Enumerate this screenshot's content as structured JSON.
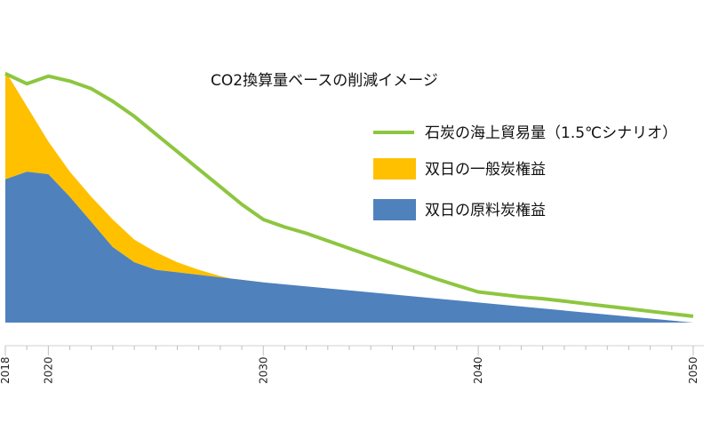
{
  "chart_data": {
    "type": "area",
    "title": "CO2換算量ベースの削減イメージ",
    "xlim": [
      2018,
      2050
    ],
    "ylim": [
      0,
      1
    ],
    "x_ticks": [
      2018,
      2020,
      2030,
      2040,
      2050
    ],
    "x_tick_labels": [
      "2018",
      "2020",
      "2030",
      "2040",
      "2050"
    ],
    "legend_position": "right",
    "series": [
      {
        "name": "石炭の海上貿易量（1.5℃シナリオ）",
        "kind": "line",
        "color": "#8DC63F",
        "x": [
          2018,
          2019,
          2020,
          2021,
          2022,
          2023,
          2024,
          2025,
          2026,
          2027,
          2028,
          2029,
          2030,
          2031,
          2032,
          2033,
          2034,
          2035,
          2036,
          2037,
          2038,
          2039,
          2040,
          2041,
          2042,
          2043,
          2044,
          2045,
          2046,
          2047,
          2048,
          2049,
          2050
        ],
        "values": [
          0.99,
          0.95,
          0.98,
          0.96,
          0.93,
          0.88,
          0.82,
          0.75,
          0.68,
          0.61,
          0.54,
          0.47,
          0.41,
          0.38,
          0.355,
          0.325,
          0.295,
          0.265,
          0.235,
          0.205,
          0.175,
          0.148,
          0.122,
          0.112,
          0.102,
          0.095,
          0.085,
          0.075,
          0.065,
          0.055,
          0.045,
          0.035,
          0.025
        ]
      },
      {
        "name": "双日の一般炭権益",
        "kind": "area",
        "color": "#FFC000",
        "x": [
          2018,
          2019,
          2020,
          2021,
          2022,
          2023,
          2024,
          2025,
          2026,
          2027,
          2028,
          2029,
          2030
        ],
        "values": [
          1.0,
          0.86,
          0.72,
          0.6,
          0.5,
          0.41,
          0.33,
          0.28,
          0.24,
          0.21,
          0.185,
          0.165,
          0.16
        ]
      },
      {
        "name": "双日の原料炭権益",
        "kind": "area",
        "color": "#4F81BD",
        "x": [
          2018,
          2019,
          2020,
          2021,
          2022,
          2023,
          2024,
          2025,
          2026,
          2027,
          2028,
          2029,
          2030,
          2035,
          2040,
          2045,
          2050
        ],
        "values": [
          0.57,
          0.6,
          0.59,
          0.5,
          0.4,
          0.3,
          0.24,
          0.21,
          0.2,
          0.19,
          0.18,
          0.17,
          0.16,
          0.12,
          0.08,
          0.04,
          0.0
        ]
      }
    ]
  }
}
